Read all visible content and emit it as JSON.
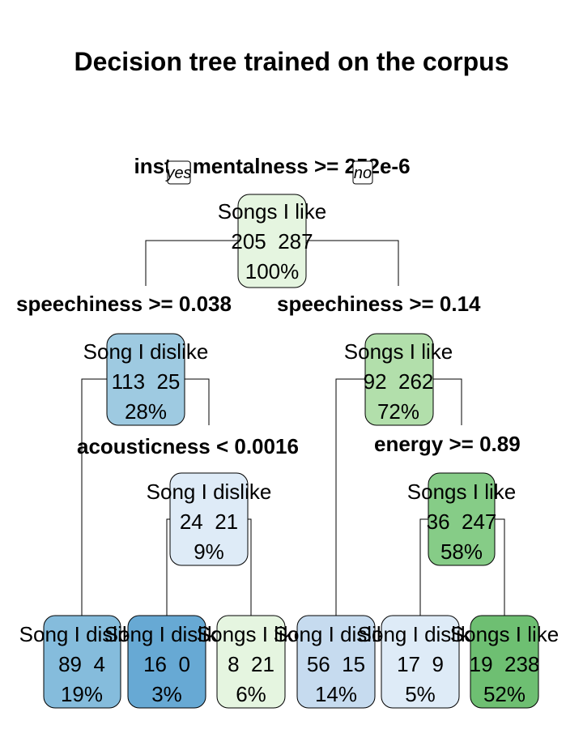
{
  "title": "Decision tree trained on the corpus",
  "yes_label": "yes",
  "no_label": "no",
  "colors": {
    "like_light": "#e5f5e0",
    "like_mid": "#b2dfab",
    "like_strong": "#86cc87",
    "like_dark": "#6ebf72",
    "dislike_light": "#deebf7",
    "dislike_lighter": "#c6dbef",
    "dislike_mid": "#9ecae1",
    "dislike_strong": "#85bcdc",
    "dislike_dark": "#67a9d4"
  },
  "splits": [
    {
      "id": "s0",
      "text": "instrumentalness >= 252e-6"
    },
    {
      "id": "s1",
      "text": "speechiness >= 0.038"
    },
    {
      "id": "s2",
      "text": "speechiness >= 0.14"
    },
    {
      "id": "s3",
      "text": "acousticness < 0.0016"
    },
    {
      "id": "s4",
      "text": "energy >= 0.89"
    }
  ],
  "nodes": [
    {
      "id": "n0",
      "label": "Songs I like",
      "counts": "205  287",
      "pct": "100%",
      "color": "like_light"
    },
    {
      "id": "n1",
      "label": "Song I dislike",
      "counts": "113  25",
      "pct": "28%",
      "color": "dislike_mid"
    },
    {
      "id": "n2",
      "label": "Songs I like",
      "counts": "92  262",
      "pct": "72%",
      "color": "like_mid"
    },
    {
      "id": "n3",
      "label": "Song I dislike",
      "counts": "24  21",
      "pct": "9%",
      "color": "dislike_light"
    },
    {
      "id": "n4",
      "label": "Songs I like",
      "counts": "36  247",
      "pct": "58%",
      "color": "like_strong"
    },
    {
      "id": "l1",
      "label": "Song I dislike",
      "counts": "89  4",
      "pct": "19%",
      "color": "dislike_strong"
    },
    {
      "id": "l2",
      "label": "Song I dislike",
      "counts": "16  0",
      "pct": "3%",
      "color": "dislike_dark"
    },
    {
      "id": "l3",
      "label": "Songs I like",
      "counts": "8  21",
      "pct": "6%",
      "color": "like_light"
    },
    {
      "id": "l4",
      "label": "Song I dislike",
      "counts": "56  15",
      "pct": "14%",
      "color": "dislike_lighter"
    },
    {
      "id": "l5",
      "label": "Song I dislike",
      "counts": "17  9",
      "pct": "5%",
      "color": "dislike_light"
    },
    {
      "id": "l6",
      "label": "Songs I like",
      "counts": "19  238",
      "pct": "52%",
      "color": "like_dark"
    }
  ]
}
